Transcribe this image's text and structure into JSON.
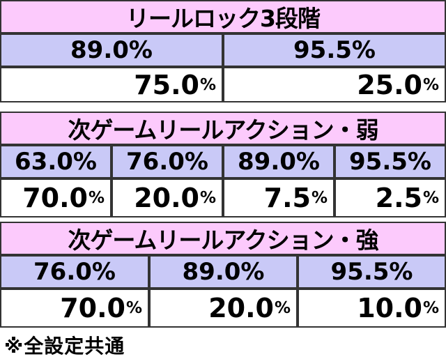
{
  "section1": {
    "title": "リールロック3段階",
    "headers": [
      "89.0%",
      "95.5%"
    ],
    "values": [
      {
        "num": "75.0",
        "unit": "%"
      },
      {
        "num": "25.0",
        "unit": "%"
      }
    ]
  },
  "section2": {
    "title": "次ゲームリールアクション・弱",
    "headers": [
      "63.0%",
      "76.0%",
      "89.0%",
      "95.5%"
    ],
    "values": [
      {
        "num": "70.0",
        "unit": "%"
      },
      {
        "num": "20.0",
        "unit": "%"
      },
      {
        "num": "7.5",
        "unit": "%"
      },
      {
        "num": "2.5",
        "unit": "%"
      }
    ]
  },
  "section3": {
    "title": "次ゲームリールアクション・強",
    "headers": [
      "76.0%",
      "89.0%",
      "95.5%"
    ],
    "values": [
      {
        "num": "70.0",
        "unit": "%"
      },
      {
        "num": "20.0",
        "unit": "%"
      },
      {
        "num": "10.0",
        "unit": "%"
      }
    ]
  },
  "footer": "※全設定共通",
  "colors": {
    "title_bg": "#fccafc",
    "header_bg": "#c9c9f7",
    "value_bg": "#ffffff",
    "border": "#333333"
  }
}
